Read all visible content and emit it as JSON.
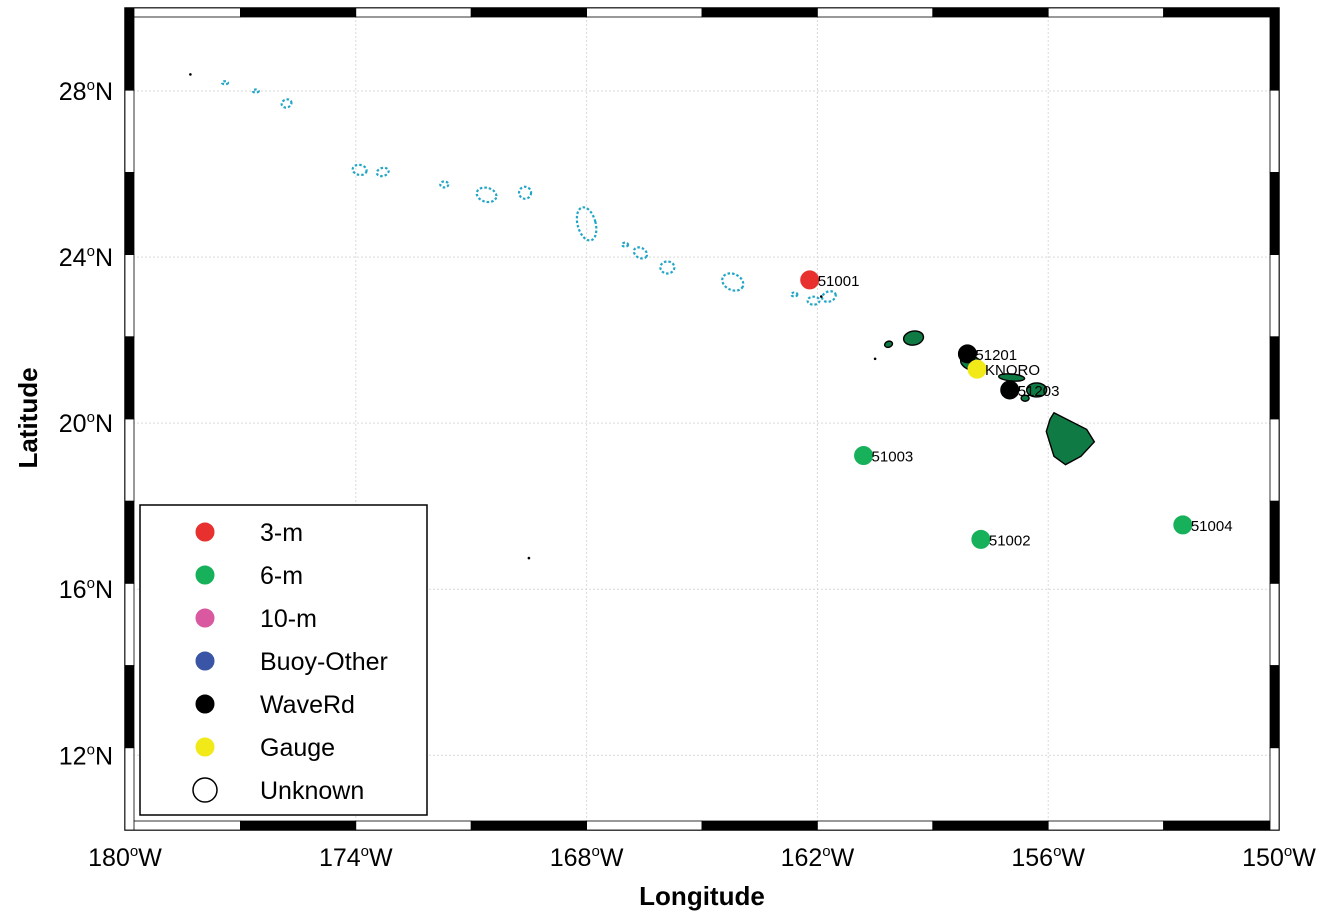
{
  "axes": {
    "xlabel": "Longitude",
    "ylabel": "Latitude",
    "x_ticks": [
      {
        "value": -180,
        "num": "180",
        "hemi": "W"
      },
      {
        "value": -174,
        "num": "174",
        "hemi": "W"
      },
      {
        "value": -168,
        "num": "168",
        "hemi": "W"
      },
      {
        "value": -162,
        "num": "162",
        "hemi": "W"
      },
      {
        "value": -156,
        "num": "156",
        "hemi": "W"
      },
      {
        "value": -150,
        "num": "150",
        "hemi": "W"
      }
    ],
    "y_ticks": [
      {
        "value": 12,
        "num": "12",
        "hemi": "N"
      },
      {
        "value": 16,
        "num": "16",
        "hemi": "N"
      },
      {
        "value": 20,
        "num": "20",
        "hemi": "N"
      },
      {
        "value": 24,
        "num": "24",
        "hemi": "N"
      },
      {
        "value": 28,
        "num": "28",
        "hemi": "N"
      }
    ],
    "degree_symbol": "o",
    "xlim": [
      -180,
      -150
    ],
    "ylim": [
      10.2,
      30.0
    ],
    "grid": true,
    "frame": "black-and-white checkered border"
  },
  "legend": {
    "position": "bottom-left",
    "items": [
      {
        "label": "3-m",
        "color": "#e8312f",
        "filled": true
      },
      {
        "label": "6-m",
        "color": "#16b15a",
        "filled": true
      },
      {
        "label": "10-m",
        "color": "#d9589f",
        "filled": true
      },
      {
        "label": "Buoy-Other",
        "color": "#3a55a6",
        "filled": true
      },
      {
        "label": "WaveRd",
        "color": "#000000",
        "filled": true
      },
      {
        "label": "Gauge",
        "color": "#f2e918",
        "filled": true
      },
      {
        "label": "Unknown",
        "color": "#ffffff",
        "filled": false
      }
    ]
  },
  "stations": [
    {
      "id": "51001",
      "lon": -162.2,
      "lat": 23.45,
      "type": "3-m",
      "color": "#e8312f"
    },
    {
      "id": "51003",
      "lon": -160.8,
      "lat": 19.22,
      "type": "6-m",
      "color": "#16b15a"
    },
    {
      "id": "51002",
      "lon": -157.75,
      "lat": 17.2,
      "type": "6-m",
      "color": "#16b15a"
    },
    {
      "id": "51004",
      "lon": -152.5,
      "lat": 17.55,
      "type": "6-m",
      "color": "#16b15a"
    },
    {
      "id": "51201",
      "lon": -158.1,
      "lat": 21.67,
      "type": "WaveRd",
      "color": "#000000"
    },
    {
      "id": "51203",
      "lon": -157.0,
      "lat": 20.8,
      "type": "WaveRd",
      "color": "#000000"
    },
    {
      "id": "KNORO",
      "lon": -157.85,
      "lat": 21.3,
      "type": "Gauge",
      "color": "#f2e918"
    }
  ],
  "chart_data": {
    "type": "scatter",
    "x": [
      -162.2,
      -160.8,
      -157.75,
      -152.5,
      -158.1,
      -157.0,
      -157.85
    ],
    "y": [
      23.45,
      19.22,
      17.2,
      17.55,
      21.67,
      20.8,
      21.3
    ],
    "labels": [
      "51001",
      "51003",
      "51002",
      "51004",
      "51201",
      "51203",
      "KNORO"
    ],
    "categories": [
      "3-m",
      "6-m",
      "6-m",
      "6-m",
      "WaveRd",
      "WaveRd",
      "Gauge"
    ],
    "xlabel": "Longitude",
    "ylabel": "Latitude",
    "xlim": [
      -180,
      -150
    ],
    "ylim": [
      10.2,
      30.0
    ],
    "legend_placement": "bottom-left",
    "grid": true
  },
  "land": {
    "nwhi_color": "#22a6c7",
    "mhi_color": "#0f7a44"
  }
}
